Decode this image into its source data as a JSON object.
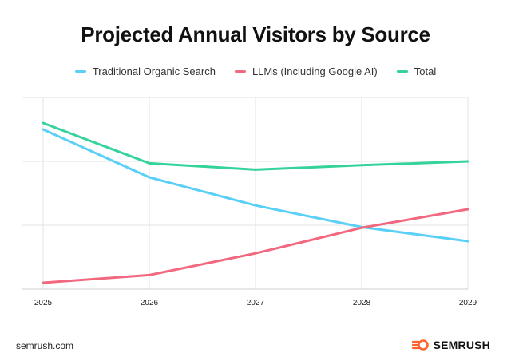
{
  "chart_data": {
    "type": "line",
    "title": "Projected Annual Visitors by Source",
    "x": [
      "2025",
      "2026",
      "2027",
      "2028",
      "2029"
    ],
    "ylim": [
      0,
      3
    ],
    "grid": true,
    "legend_position": "top",
    "series": [
      {
        "name": "Traditional Organic Search",
        "color": "#5bd0f6",
        "values": [
          2.5,
          1.75,
          1.31,
          0.97,
          0.75
        ]
      },
      {
        "name": "LLMs (Including Google AI)",
        "color": "#f2687f",
        "values": [
          0.1,
          0.22,
          0.56,
          0.96,
          1.25
        ]
      },
      {
        "name": "Total",
        "color": "#33d39a",
        "values": [
          2.6,
          1.97,
          1.87,
          1.94,
          2.0
        ]
      }
    ]
  },
  "footer": {
    "site": "semrush.com",
    "brand": "SEMRUSH",
    "brand_color": "#ff642d"
  }
}
